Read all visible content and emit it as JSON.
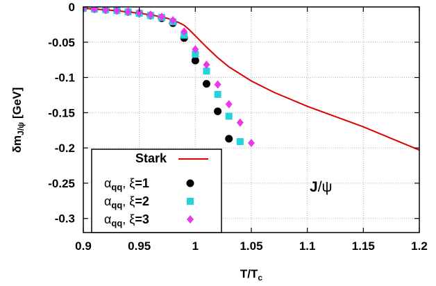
{
  "chart_data": {
    "type": "scatter",
    "ylabel": "δm_{J/ψ} [GeV]",
    "xlabel": "T/T_c",
    "xlim": [
      0.9,
      1.2
    ],
    "ylim": [
      -0.32,
      0.0
    ],
    "xticks": [
      0.9,
      0.95,
      1.0,
      1.05,
      1.1,
      1.15,
      1.2
    ],
    "xtick_labels": [
      "0.9",
      "0.95",
      "1",
      "1.05",
      "1.1",
      "1.15",
      "1.2"
    ],
    "yticks": [
      0,
      -0.05,
      -0.1,
      -0.15,
      -0.2,
      -0.25,
      -0.3
    ],
    "ytick_labels": [
      "0",
      "-0.05",
      "-0.1",
      "-0.15",
      "-0.2",
      "-0.25",
      "-0.3"
    ],
    "grid": true,
    "legend_position": "bottom-left",
    "annotation": "J/ψ",
    "series": [
      {
        "name": "Stark",
        "kind": "line",
        "color": "#dd0000",
        "points": [
          [
            0.9,
            -0.002
          ],
          [
            0.92,
            -0.004
          ],
          [
            0.94,
            -0.007
          ],
          [
            0.96,
            -0.011
          ],
          [
            0.975,
            -0.016
          ],
          [
            0.985,
            -0.022
          ],
          [
            0.99,
            -0.026
          ],
          [
            0.995,
            -0.033
          ],
          [
            1.0,
            -0.041
          ],
          [
            1.01,
            -0.057
          ],
          [
            1.02,
            -0.072
          ],
          [
            1.03,
            -0.085
          ],
          [
            1.04,
            -0.095
          ],
          [
            1.05,
            -0.105
          ],
          [
            1.07,
            -0.121
          ],
          [
            1.1,
            -0.141
          ],
          [
            1.15,
            -0.17
          ],
          [
            1.2,
            -0.203
          ]
        ]
      },
      {
        "name": "α_qq, ξ=1",
        "kind": "points",
        "marker": "circle",
        "color": "#000000",
        "points": [
          [
            0.9,
            -0.002
          ],
          [
            0.91,
            -0.003
          ],
          [
            0.92,
            -0.004
          ],
          [
            0.93,
            -0.005
          ],
          [
            0.94,
            -0.007
          ],
          [
            0.95,
            -0.009
          ],
          [
            0.96,
            -0.012
          ],
          [
            0.97,
            -0.016
          ],
          [
            0.98,
            -0.023
          ],
          [
            0.99,
            -0.044
          ],
          [
            1.0,
            -0.076
          ],
          [
            1.01,
            -0.109
          ],
          [
            1.02,
            -0.148
          ],
          [
            1.03,
            -0.187
          ]
        ]
      },
      {
        "name": "α_qq, ξ=2",
        "kind": "points",
        "marker": "square",
        "color": "#22d3e0",
        "points": [
          [
            0.9,
            -0.002
          ],
          [
            0.91,
            -0.003
          ],
          [
            0.92,
            -0.004
          ],
          [
            0.93,
            -0.005
          ],
          [
            0.94,
            -0.007
          ],
          [
            0.95,
            -0.009
          ],
          [
            0.96,
            -0.012
          ],
          [
            0.97,
            -0.015
          ],
          [
            0.98,
            -0.021
          ],
          [
            0.99,
            -0.04
          ],
          [
            1.0,
            -0.067
          ],
          [
            1.01,
            -0.091
          ],
          [
            1.02,
            -0.124
          ],
          [
            1.03,
            -0.155
          ],
          [
            1.04,
            -0.191
          ]
        ]
      },
      {
        "name": "α_qq, ξ=3",
        "kind": "points",
        "marker": "diamond",
        "color": "#e83ae8",
        "points": [
          [
            0.9,
            -0.002
          ],
          [
            0.91,
            -0.003
          ],
          [
            0.92,
            -0.004
          ],
          [
            0.93,
            -0.005
          ],
          [
            0.94,
            -0.007
          ],
          [
            0.95,
            -0.008
          ],
          [
            0.96,
            -0.011
          ],
          [
            0.97,
            -0.014
          ],
          [
            0.98,
            -0.019
          ],
          [
            0.99,
            -0.035
          ],
          [
            1.0,
            -0.06
          ],
          [
            1.01,
            -0.082
          ],
          [
            1.02,
            -0.11
          ],
          [
            1.03,
            -0.138
          ],
          [
            1.04,
            -0.164
          ],
          [
            1.05,
            -0.193
          ]
        ]
      }
    ]
  }
}
